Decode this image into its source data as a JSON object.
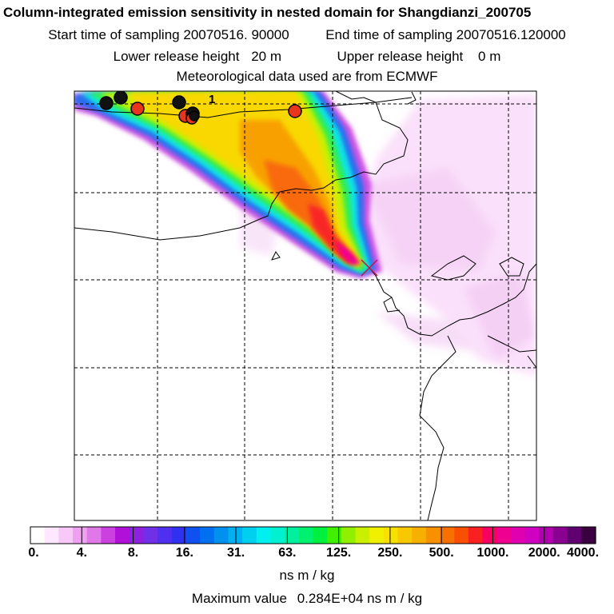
{
  "header": {
    "title": "Column-integrated emission sensitivity in nested domain for Shangdianzi_200705",
    "start_label": "Start time of sampling",
    "start_value": "20070516. 90000",
    "end_label": "End time of sampling",
    "end_value": "20070516.120000",
    "lower_label": "Lower release height",
    "lower_value": "20 m",
    "upper_label": "Upper release height",
    "upper_value": "0 m",
    "met_line": "Meteorological data used are from ECMWF"
  },
  "map": {
    "contour_label": "1",
    "markers": [
      {
        "color": "#111111",
        "type": "black-dot"
      },
      {
        "color": "#111111",
        "type": "black-dot"
      },
      {
        "color": "#e8351e",
        "type": "red-dot"
      },
      {
        "color": "#111111",
        "type": "black-dot"
      },
      {
        "color": "#e8351e",
        "type": "red-dot"
      },
      {
        "color": "#111111",
        "type": "black-dot"
      },
      {
        "color": "#e8351e",
        "type": "red-dot"
      },
      {
        "color": "#111111",
        "type": "black-dot"
      },
      {
        "color": "#e8351e",
        "type": "red-dot"
      }
    ],
    "receptor_symbol": "x-cross"
  },
  "colorbar": {
    "ticks": [
      "0.",
      "4.",
      "8.",
      "16.",
      "31.",
      "63.",
      "125.",
      "250.",
      "500.",
      "1000.",
      "2000.",
      "4000."
    ],
    "colors": [
      "#ffffff",
      "#ffe8ff",
      "#f8c8f8",
      "#f0a0f0",
      "#e078e8",
      "#cc40e0",
      "#b010d8",
      "#9020e0",
      "#7030e8",
      "#5030f0",
      "#3030f0",
      "#1050f0",
      "#0070f0",
      "#0090f0",
      "#00b0f0",
      "#00d0f0",
      "#00f0f0",
      "#00f0d0",
      "#00f0a0",
      "#00f070",
      "#00f040",
      "#40f000",
      "#90f000",
      "#c8f000",
      "#f0f000",
      "#f8e000",
      "#f8c800",
      "#f8b000",
      "#f89000",
      "#f87000",
      "#f85000",
      "#f82020",
      "#f80060",
      "#f00090",
      "#e000b0",
      "#d000c0",
      "#b000b0",
      "#8a0090",
      "#600070",
      "#3a0040"
    ],
    "units": "ns m / kg"
  },
  "footer": {
    "max_label": "Maximum value",
    "max_value": "0.284E+04 ns m / kg"
  }
}
